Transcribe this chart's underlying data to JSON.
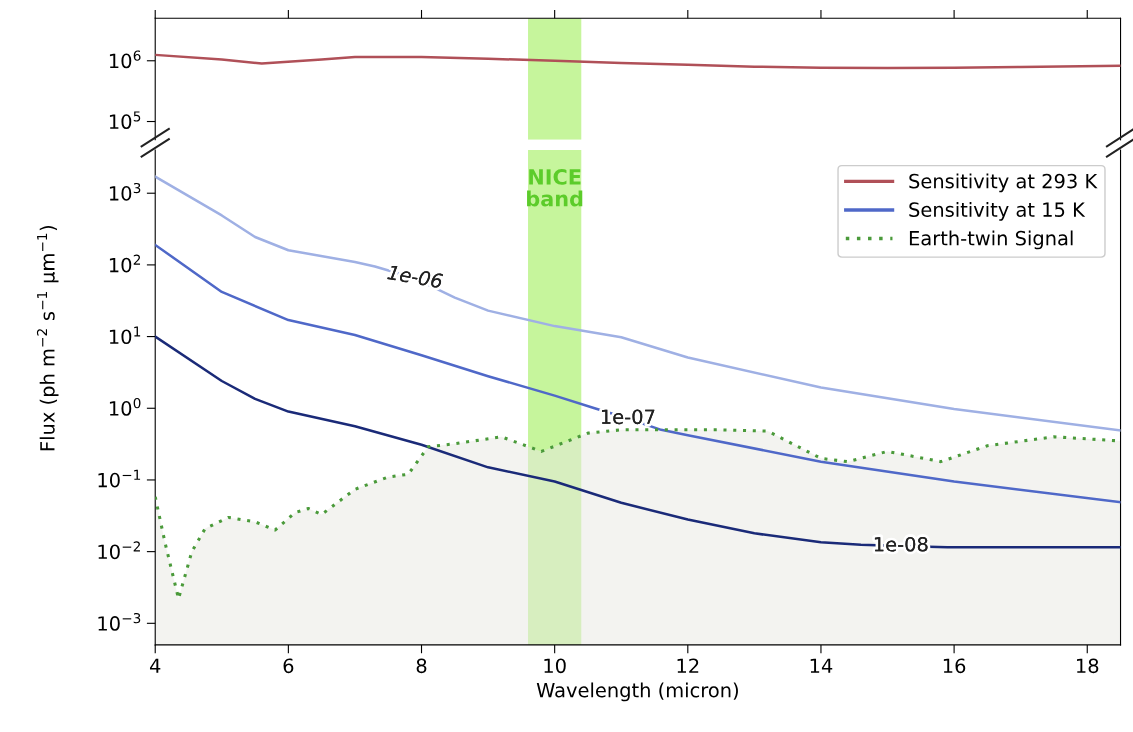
{
  "chart_data": [
    {
      "type": "line",
      "tick_labels": "y",
      "xlim": [
        4,
        18.5
      ],
      "xticks": [
        {
          "value": 4,
          "label": null
        },
        {
          "value": 6,
          "label": null
        },
        {
          "value": 8,
          "label": null
        },
        {
          "value": 10,
          "label": null
        },
        {
          "value": 12,
          "label": null
        },
        {
          "value": 14,
          "label": null
        },
        {
          "value": 16,
          "label": null
        },
        {
          "value": 18,
          "label": null
        }
      ],
      "log": "y",
      "ylim": [
        50000,
        5000000
      ],
      "yticks": [
        {
          "value": 100000,
          "label": "10$^{5}$"
        },
        {
          "value": 1000000,
          "label": "10$^{6}$"
        }
      ],
      "bands": [
        {
          "axis": "x",
          "from": 9.6,
          "to": 10.4,
          "color": "#c6f59c"
        }
      ],
      "series": [
        {
          "name": "Sensitivity at 293 K",
          "color": "#b05058",
          "x": [
            4,
            5,
            5.6,
            6.5,
            7,
            8,
            9,
            10,
            11,
            12,
            13,
            14,
            15,
            16,
            17,
            18.5
          ],
          "values": [
            1250000,
            1050000,
            900000,
            1050000,
            1150000,
            1150000,
            1080000,
            1000000,
            920000,
            860000,
            800000,
            770000,
            760000,
            770000,
            790000,
            830000
          ]
        }
      ]
    },
    {
      "type": "line",
      "xlabel": "Wavelength (micron)",
      "ylabel": "Flux (ph m$^{−2}$ s$^{−1}$ µm$^{−1}$)",
      "xlim": [
        4,
        18.5
      ],
      "xticks": [
        4,
        6,
        8,
        10,
        12,
        14,
        16,
        18
      ],
      "log": "y",
      "ylim": [
        0.0005,
        4000
      ],
      "yticks": [
        {
          "value": 0.001,
          "label": "10$^{−3}$"
        },
        {
          "value": 0.01,
          "label": "10$^{−2}$"
        },
        {
          "value": 0.1,
          "label": "10$^{−1}$"
        },
        {
          "value": 1,
          "label": "10$^{0}$"
        },
        {
          "value": 10,
          "label": "10$^{1}$"
        },
        {
          "value": 100,
          "label": "10$^{2}$"
        },
        {
          "value": 1000,
          "label": "10$^{3}$"
        }
      ],
      "legend": "top right",
      "bands": [
        {
          "axis": "x",
          "from": 9.6,
          "to": 10.4,
          "label": "NICE\nband",
          "color": "#c6f59c"
        }
      ],
      "annotations": [
        {
          "text": "1e-06",
          "x": 7.9,
          "y": 65
        },
        {
          "text": "1e-07",
          "x": 11.1,
          "y": 0.72
        },
        {
          "text": "1e-08",
          "x": 15.2,
          "y": 0.012
        }
      ],
      "series": [
        {
          "color": "#9fb0e4",
          "x": [
            4,
            5,
            5.5,
            6,
            7,
            7.3,
            7.9,
            8.5,
            9,
            10,
            11,
            12,
            14,
            16,
            18.5
          ],
          "values": [
            1700,
            490,
            245,
            160,
            110,
            95,
            65,
            35,
            23,
            14,
            9.8,
            5.1,
            1.95,
            0.98,
            0.49
          ]
        },
        {
          "name": "Sensitivity at 15 K",
          "color": "#4f68c8",
          "x": [
            4,
            5,
            6,
            7,
            8,
            9,
            10,
            10.6,
            11.1,
            11.6,
            12,
            14,
            16,
            18.5
          ],
          "values": [
            190,
            42,
            17,
            10.5,
            5.5,
            2.8,
            1.5,
            1.0,
            0.72,
            0.5,
            0.42,
            0.18,
            0.095,
            0.049
          ]
        },
        {
          "color": "#1a2a78",
          "x": [
            4,
            5,
            5.5,
            6,
            7,
            8,
            9,
            10,
            11,
            12,
            13,
            14,
            14.6,
            15.2,
            15.9,
            16,
            18.5
          ],
          "values": [
            10,
            2.4,
            1.35,
            0.9,
            0.56,
            0.31,
            0.15,
            0.095,
            0.048,
            0.028,
            0.018,
            0.0135,
            0.0125,
            0.012,
            0.0115,
            0.0115,
            0.0115
          ]
        },
        {
          "name": "Earth-twin Signal",
          "type": "area",
          "line_style": "dotted",
          "color": "#4a9a3a",
          "x": [
            4,
            4.15,
            4.35,
            4.55,
            4.75,
            5.1,
            5.5,
            5.8,
            6.1,
            6.3,
            6.5,
            7,
            7.5,
            7.8,
            8.1,
            8.5,
            9.2,
            9.8,
            10.5,
            11,
            11.6,
            12.5,
            13.2,
            14,
            14.4,
            15,
            15.8,
            16.5,
            17.5,
            18.5
          ],
          "values": [
            0.058,
            0.013,
            0.0022,
            0.01,
            0.021,
            0.03,
            0.026,
            0.02,
            0.035,
            0.04,
            0.033,
            0.074,
            0.11,
            0.12,
            0.29,
            0.32,
            0.4,
            0.25,
            0.45,
            0.5,
            0.5,
            0.5,
            0.48,
            0.2,
            0.18,
            0.25,
            0.18,
            0.3,
            0.4,
            0.35
          ]
        }
      ]
    }
  ]
}
